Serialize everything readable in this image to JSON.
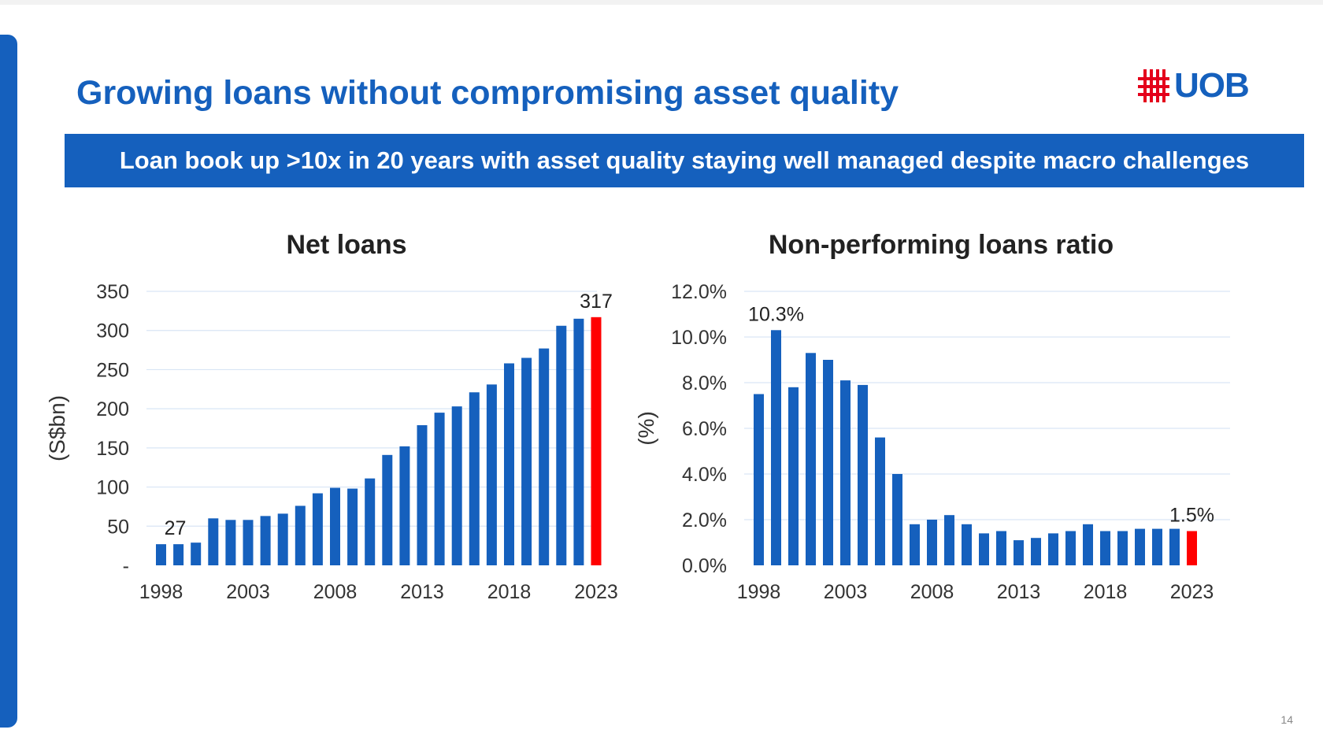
{
  "slide": {
    "title": "Growing loans without compromising asset quality",
    "banner": "Loan book up >10x in 20 years with asset quality staying well managed despite macro challenges",
    "logo_text": "UOB",
    "page_number": "14",
    "colors": {
      "accent": "#1560bd",
      "highlight": "#ff0000",
      "grid": "#d9e5f5"
    }
  },
  "chart_data": [
    {
      "type": "bar",
      "title": "Net loans",
      "ylabel": "(S$bn)",
      "xlabel": "",
      "ylim": [
        0,
        350
      ],
      "yticks": [
        0,
        50,
        100,
        150,
        200,
        250,
        300,
        350
      ],
      "ytick_labels": [
        "-",
        "50",
        "100",
        "150",
        "200",
        "250",
        "300",
        "350"
      ],
      "x_tick_labels": [
        "1998",
        "2003",
        "2008",
        "2013",
        "2018",
        "2023"
      ],
      "categories": [
        "1998",
        "1999",
        "2000",
        "2001",
        "2002",
        "2003",
        "2004",
        "2005",
        "2006",
        "2007",
        "2008",
        "2009",
        "2010",
        "2011",
        "2012",
        "2013",
        "2014",
        "2015",
        "2016",
        "2017",
        "2018",
        "2019",
        "2020",
        "2021",
        "2022",
        "2023"
      ],
      "values": [
        27,
        27,
        29,
        60,
        58,
        58,
        63,
        66,
        76,
        92,
        99,
        98,
        111,
        141,
        152,
        179,
        195,
        203,
        221,
        231,
        258,
        265,
        277,
        306,
        315,
        317
      ],
      "highlight": "2023",
      "data_labels": [
        {
          "category": "1998",
          "text": "27"
        },
        {
          "category": "2023",
          "text": "317"
        }
      ],
      "grid": true
    },
    {
      "type": "bar",
      "title": "Non-performing loans ratio",
      "ylabel": "(%)",
      "xlabel": "",
      "ylim": [
        0,
        12
      ],
      "yticks": [
        0,
        2,
        4,
        6,
        8,
        10,
        12
      ],
      "ytick_labels": [
        "0.0%",
        "2.0%",
        "4.0%",
        "6.0%",
        "8.0%",
        "10.0%",
        "12.0%"
      ],
      "x_tick_labels": [
        "1998",
        "2003",
        "2008",
        "2013",
        "2018",
        "2023"
      ],
      "categories": [
        "1998",
        "1999",
        "2000",
        "2001",
        "2002",
        "2003",
        "2004",
        "2005",
        "2006",
        "2007",
        "2008",
        "2009",
        "2010",
        "2011",
        "2012",
        "2013",
        "2014",
        "2015",
        "2016",
        "2017",
        "2018",
        "2019",
        "2020",
        "2021",
        "2022",
        "2023"
      ],
      "values": [
        7.5,
        10.3,
        7.8,
        9.3,
        9.0,
        8.1,
        7.9,
        5.6,
        4.0,
        1.8,
        2.0,
        2.2,
        1.8,
        1.4,
        1.5,
        1.1,
        1.2,
        1.4,
        1.5,
        1.8,
        1.5,
        1.5,
        1.6,
        1.6,
        1.6,
        1.5
      ],
      "highlight": "2023",
      "data_labels": [
        {
          "category": "1999",
          "text": "10.3%"
        },
        {
          "category": "2023",
          "text": "1.5%"
        }
      ],
      "grid": true
    }
  ]
}
